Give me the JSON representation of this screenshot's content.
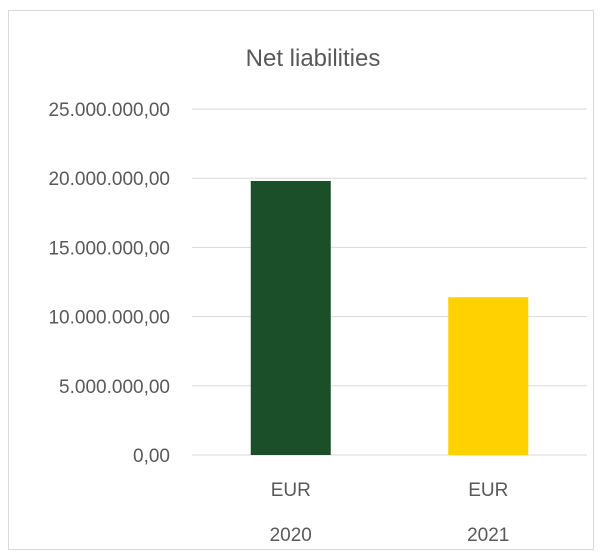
{
  "chart_data": {
    "type": "bar",
    "title": "Net liabilities",
    "xlabel": "",
    "ylabel": "",
    "categories": [
      {
        "top": "EUR",
        "bottom": "2020"
      },
      {
        "top": "EUR",
        "bottom": "2021"
      }
    ],
    "values": [
      19800000,
      11400000
    ],
    "colors": [
      "#1b4f29",
      "#ffd100"
    ],
    "ylim": [
      0,
      25000000
    ],
    "yticks": [
      0,
      5000000,
      10000000,
      15000000,
      20000000,
      25000000
    ],
    "ytick_labels": [
      "0,00",
      "5.000.000,00",
      "10.000.000,00",
      "15.000.000,00",
      "20.000.000,00",
      "25.000.000,00"
    ],
    "grid": true,
    "legend": "none"
  }
}
